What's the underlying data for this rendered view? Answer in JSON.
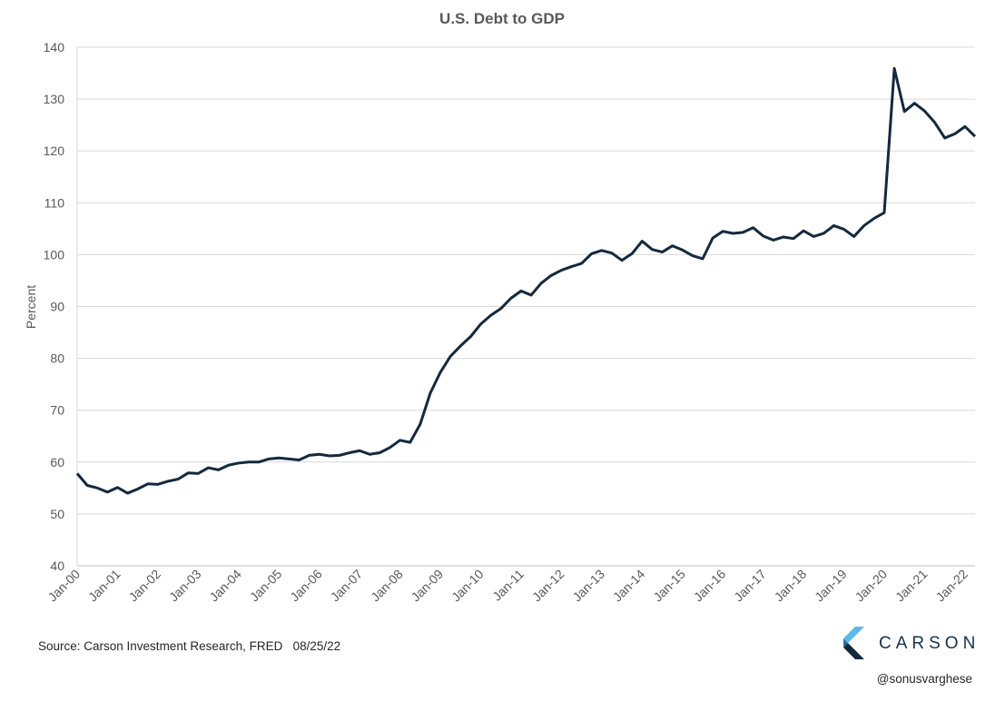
{
  "chart_data": {
    "type": "line",
    "title": "U.S. Debt to GDP",
    "ylabel": "Percent",
    "xlabel": "",
    "ylim": [
      40,
      140
    ],
    "yticks": [
      40,
      50,
      60,
      70,
      80,
      90,
      100,
      110,
      120,
      130,
      140
    ],
    "xtick_labels": [
      "Jan-00",
      "Jan-01",
      "Jan-02",
      "Jan-03",
      "Jan-04",
      "Jan-05",
      "Jan-06",
      "Jan-07",
      "Jan-08",
      "Jan-09",
      "Jan-10",
      "Jan-11",
      "Jan-12",
      "Jan-13",
      "Jan-14",
      "Jan-15",
      "Jan-16",
      "Jan-17",
      "Jan-18",
      "Jan-19",
      "Jan-20",
      "Jan-21",
      "Jan-22"
    ],
    "grid": true,
    "line_color": "#14293d",
    "series": [
      {
        "x": [
          "2000-Q1",
          "2000-Q2",
          "2000-Q3",
          "2000-Q4",
          "2001-Q1",
          "2001-Q2",
          "2001-Q3",
          "2001-Q4",
          "2002-Q1",
          "2002-Q2",
          "2002-Q3",
          "2002-Q4",
          "2003-Q1",
          "2003-Q2",
          "2003-Q3",
          "2003-Q4",
          "2004-Q1",
          "2004-Q2",
          "2004-Q3",
          "2004-Q4",
          "2005-Q1",
          "2005-Q2",
          "2005-Q3",
          "2005-Q4",
          "2006-Q1",
          "2006-Q2",
          "2006-Q3",
          "2006-Q4",
          "2007-Q1",
          "2007-Q2",
          "2007-Q3",
          "2007-Q4",
          "2008-Q1",
          "2008-Q2",
          "2008-Q3",
          "2008-Q4",
          "2009-Q1",
          "2009-Q2",
          "2009-Q3",
          "2009-Q4",
          "2010-Q1",
          "2010-Q2",
          "2010-Q3",
          "2010-Q4",
          "2011-Q1",
          "2011-Q2",
          "2011-Q3",
          "2011-Q4",
          "2012-Q1",
          "2012-Q2",
          "2012-Q3",
          "2012-Q4",
          "2013-Q1",
          "2013-Q2",
          "2013-Q3",
          "2013-Q4",
          "2014-Q1",
          "2014-Q2",
          "2014-Q3",
          "2014-Q4",
          "2015-Q1",
          "2015-Q2",
          "2015-Q3",
          "2015-Q4",
          "2016-Q1",
          "2016-Q2",
          "2016-Q3",
          "2016-Q4",
          "2017-Q1",
          "2017-Q2",
          "2017-Q3",
          "2017-Q4",
          "2018-Q1",
          "2018-Q2",
          "2018-Q3",
          "2018-Q4",
          "2019-Q1",
          "2019-Q2",
          "2019-Q3",
          "2019-Q4",
          "2020-Q1",
          "2020-Q2",
          "2020-Q3",
          "2020-Q4",
          "2021-Q1",
          "2021-Q2",
          "2021-Q3",
          "2021-Q4",
          "2022-Q1",
          "2022-Q2"
        ],
        "values": [
          57.8,
          55.5,
          55.0,
          54.2,
          55.1,
          54.0,
          54.8,
          55.8,
          55.7,
          56.3,
          56.7,
          57.9,
          57.8,
          58.9,
          58.5,
          59.4,
          59.8,
          60.0,
          60.0,
          60.6,
          60.8,
          60.6,
          60.4,
          61.3,
          61.5,
          61.2,
          61.3,
          61.8,
          62.2,
          61.5,
          61.8,
          62.8,
          64.2,
          63.8,
          67.3,
          73.3,
          77.3,
          80.4,
          82.4,
          84.2,
          86.6,
          88.3,
          89.6,
          91.6,
          93.0,
          92.2,
          94.5,
          96.0,
          97.0,
          97.7,
          98.3,
          100.2,
          100.8,
          100.3,
          98.9,
          100.2,
          102.6,
          101.0,
          100.5,
          101.7,
          100.9,
          99.8,
          99.2,
          103.2,
          104.5,
          104.1,
          104.3,
          105.2,
          103.6,
          102.8,
          103.4,
          103.1,
          104.6,
          103.5,
          104.1,
          105.6,
          104.9,
          103.5,
          105.6,
          107.0,
          108.1,
          135.9,
          127.6,
          129.2,
          127.7,
          125.5,
          122.5,
          123.3,
          124.7,
          122.8
        ]
      }
    ]
  },
  "footer": {
    "source": "Source: Carson Investment Research, FRED   08/25/22",
    "logo_text": "CARSON",
    "handle": "@sonusvarghese"
  }
}
